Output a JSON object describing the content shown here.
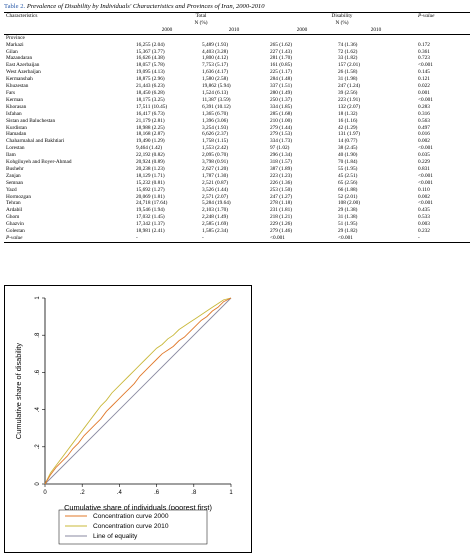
{
  "caption": {
    "label": "Table 2.",
    "title": "Prevalence of Disability by Individuals' Characteristics and Provinces of Iran, 2000-2010"
  },
  "table": {
    "header": {
      "characteristics": "Characteristics",
      "total": "Total",
      "total_sub": "N (%)",
      "disability": "Disability",
      "disability_sub": "N (%)",
      "pvalue": "P-value",
      "y2000": "2000",
      "y2010": "2010",
      "y2000b": "2000",
      "y2010b": "2010"
    },
    "section": "Province",
    "rows": [
      [
        "Markazi",
        "16,255 (2.04)",
        "5,489 (1.93)",
        "265 (1.62)",
        "74 (1.36)",
        "0.172"
      ],
      [
        "Gilan",
        "15,367 (3.77)",
        "4,403 (3.28)",
        "227 (1.43)",
        "72 (1.62)",
        "0.361"
      ],
      [
        "Mazandaran",
        "16,626 (4.38)",
        "1,800 (4.12)",
        "281 (1.70)",
        "33 (1.82)",
        "0.723"
      ],
      [
        "East Azerbaijan",
        "18,057 (5.78)",
        "7,753 (5.17)",
        "161 (0.85)",
        "157 (2.01)",
        "<0.001"
      ],
      [
        "West Azerbaijan",
        "19,095 (4.13)",
        "1,636 (4.17)",
        "225 (1.17)",
        "26 (1.58)",
        "0.145"
      ],
      [
        "Kermanshah",
        "18,875 (2.96)",
        "1,580 (2.58)",
        "284 (1.48)",
        "31 (1.98)",
        "0.121"
      ],
      [
        "Khuzestan",
        "21,443 (6.23)",
        "19,862 (5.94)",
        "337 (1.51)",
        "247 (1.24)",
        "0.022"
      ],
      [
        "Fars",
        "18,450 (6.28)",
        "1,524 (6.13)",
        "280 (1.49)",
        "39 (2.56)",
        "0.001"
      ],
      [
        "Kerman",
        "18,175 (3.25)",
        "11,387 (3.59)",
        "250 (1.37)",
        "223 (1.91)",
        "<0.001"
      ],
      [
        "Khorasan",
        "17,511 (10.45)",
        "6,391 (10.12)",
        "334 (1.85)",
        "132 (2.07)",
        "0.283"
      ],
      [
        "Isfahan",
        "16,417 (6.73)",
        "1,365 (6.70)",
        "285 (1.68)",
        "18 (1.32)",
        "0.316"
      ],
      [
        "Sistan and Baluchestan",
        "21,179 (2.81)",
        "1,396 (3.06)",
        "210 (1.00)",
        "16 (1.16)",
        "0.563"
      ],
      [
        "Kurdistan",
        "18,988 (2.25)",
        "3,254 (1.93)",
        "279 (1.44)",
        "42 (1.29)",
        "0.497"
      ],
      [
        "Hamadan",
        "18,168 (2.87)",
        "6,626 (2.37)",
        "279 (1.53)",
        "131 (1.97)",
        "0.016"
      ],
      [
        "Chaharmahal and Bakhtiari",
        "19,490 (1.29)",
        "1,758 (1.15)",
        "334 (1.73)",
        "14 (0.77)",
        "0.002"
      ],
      [
        "Lorestan",
        "9,464 (1.42)",
        "1,553 (2.42)",
        "97 (1.02)",
        "38 (2.45)",
        "<0.001"
      ],
      [
        "Ilam",
        "22,192 (0.82)",
        "2,095 (0.70)",
        "296 (1.34)",
        "40 (1.90)",
        "0.035"
      ],
      [
        "Kohgiluyeh and Boyer-Ahmad",
        "20,924 (0.89)",
        "3,798 (0.91)",
        "318 (1.57)",
        "70 (1.84)",
        "0.229"
      ],
      [
        "Bushehr",
        "20,238 (1.23)",
        "2,627 (1.20)",
        "387 (1.89)",
        "55 (1.95)",
        "0.831"
      ],
      [
        "Zanjan",
        "18,129 (1.71)",
        "1,787 (1.30)",
        "223 (1.23)",
        "45 (2.51)",
        "<0.001"
      ],
      [
        "Semnan",
        "15,232 (0.81)",
        "2,521 (0.87)",
        "226 (1.36)",
        "65 (2.56)",
        "<0.001"
      ],
      [
        "Yazd",
        "15,692 (1.27)",
        "3,526 (1.44)",
        "253 (1.50)",
        "66 (1.88)",
        "0.110"
      ],
      [
        "Hormozgan",
        "20,069 (1.81)",
        "2,571 (2.07)",
        "247 (1.27)",
        "52 (2.01)",
        "0.002"
      ],
      [
        "Tehran",
        "24,718 (17.64)",
        "5,284 (19.64)",
        "278 (1.18)",
        "108 (2.00)",
        "<0.001"
      ],
      [
        "Ardabil",
        "19,546 (1.94)",
        "2,103 (1.70)",
        "231 (1.81)",
        "29 (1.38)",
        "0.435"
      ],
      [
        "Ghom",
        "17,032 (1.45)",
        "2,248 (1.49)",
        "218 (1.21)",
        "31 (1.38)",
        "0.533"
      ],
      [
        "Ghazvin",
        "17,342 (1.37)",
        "2,585 (1.69)",
        "229 (1.26)",
        "51 (1.95)",
        "0.003"
      ],
      [
        "Golestan",
        "18,981 (2.41)",
        "1,585 (2.34)",
        "279 (1.46)",
        "29 (1.82)",
        "0.232"
      ]
    ],
    "pvalue_row": [
      "P-value",
      "-",
      "-",
      "<0.001",
      "<0.001",
      "-"
    ]
  },
  "chart_data": {
    "type": "line",
    "xlabel": "Cumulative share of individuals (poorest first)",
    "ylabel": "Cumulative share of disability",
    "xlim": [
      0,
      1
    ],
    "ylim": [
      0,
      1
    ],
    "xticks": [
      "0",
      ".2",
      ".4",
      ".6",
      ".8",
      "1"
    ],
    "yticks": [
      "0",
      ".2",
      ".4",
      ".6",
      ".8",
      "1"
    ],
    "grid": false,
    "legend_position": "bottom",
    "series": [
      {
        "name": "Concentration curve 2000",
        "color": "#e0782a",
        "x": [
          0,
          0.03,
          0.06,
          0.09,
          0.12,
          0.15,
          0.18,
          0.21,
          0.24,
          0.27,
          0.3,
          0.33,
          0.36,
          0.39,
          0.42,
          0.45,
          0.48,
          0.51,
          0.54,
          0.57,
          0.6,
          0.63,
          0.66,
          0.69,
          0.72,
          0.75,
          0.78,
          0.81,
          0.84,
          0.87,
          0.9,
          0.93,
          0.96,
          1.0
        ],
        "y": [
          0,
          0.05,
          0.09,
          0.12,
          0.15,
          0.19,
          0.22,
          0.26,
          0.29,
          0.32,
          0.35,
          0.39,
          0.42,
          0.45,
          0.48,
          0.51,
          0.54,
          0.58,
          0.61,
          0.64,
          0.67,
          0.7,
          0.72,
          0.74,
          0.77,
          0.79,
          0.82,
          0.85,
          0.88,
          0.9,
          0.93,
          0.95,
          0.98,
          1.0
        ]
      },
      {
        "name": "Concentration curve 2010",
        "color": "#c9b83a",
        "x": [
          0,
          0.03,
          0.06,
          0.09,
          0.12,
          0.15,
          0.18,
          0.21,
          0.24,
          0.27,
          0.3,
          0.33,
          0.36,
          0.39,
          0.42,
          0.45,
          0.48,
          0.51,
          0.54,
          0.57,
          0.6,
          0.63,
          0.66,
          0.69,
          0.72,
          0.75,
          0.78,
          0.81,
          0.84,
          0.87,
          0.9,
          0.93,
          0.96,
          1.0
        ],
        "y": [
          0,
          0.06,
          0.1,
          0.14,
          0.18,
          0.22,
          0.26,
          0.3,
          0.34,
          0.38,
          0.42,
          0.45,
          0.49,
          0.52,
          0.55,
          0.58,
          0.61,
          0.64,
          0.67,
          0.7,
          0.73,
          0.75,
          0.78,
          0.8,
          0.83,
          0.85,
          0.87,
          0.89,
          0.91,
          0.93,
          0.95,
          0.97,
          0.99,
          1.0
        ]
      },
      {
        "name": "Line of equality",
        "color": "#8a8aa0",
        "x": [
          0,
          1
        ],
        "y": [
          0,
          1
        ]
      }
    ]
  }
}
